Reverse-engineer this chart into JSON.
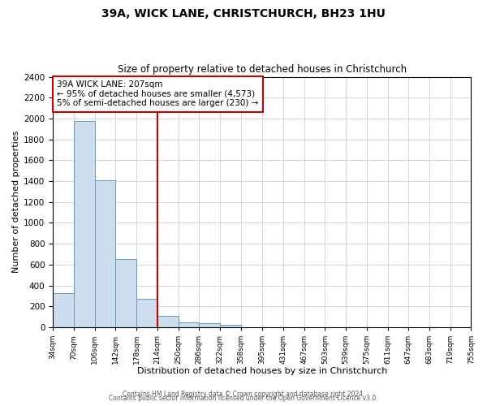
{
  "title": "39A, WICK LANE, CHRISTCHURCH, BH23 1HU",
  "subtitle": "Size of property relative to detached houses in Christchurch",
  "xlabel": "Distribution of detached houses by size in Christchurch",
  "ylabel": "Number of detached properties",
  "bar_values": [
    325,
    1975,
    1410,
    650,
    275,
    105,
    45,
    35,
    20,
    0,
    0,
    0,
    0,
    0,
    0,
    0,
    0,
    0,
    0,
    0
  ],
  "bin_edges": [
    34,
    70,
    106,
    142,
    178,
    214,
    250,
    286,
    322,
    358,
    395,
    431,
    467,
    503,
    539,
    575,
    611,
    647,
    683,
    719,
    755
  ],
  "tick_labels": [
    "34sqm",
    "70sqm",
    "106sqm",
    "142sqm",
    "178sqm",
    "214sqm",
    "250sqm",
    "286sqm",
    "322sqm",
    "358sqm",
    "395sqm",
    "431sqm",
    "467sqm",
    "503sqm",
    "539sqm",
    "575sqm",
    "611sqm",
    "647sqm",
    "683sqm",
    "719sqm",
    "755sqm"
  ],
  "bar_color": "#ccdded",
  "bar_edge_color": "#6699bb",
  "vline_x": 214,
  "vline_color": "#cc0000",
  "ylim": [
    0,
    2400
  ],
  "yticks": [
    0,
    200,
    400,
    600,
    800,
    1000,
    1200,
    1400,
    1600,
    1800,
    2000,
    2200,
    2400
  ],
  "annotation_line1": "39A WICK LANE: 207sqm",
  "annotation_line2": "← 95% of detached houses are smaller (4,573)",
  "annotation_line3": "5% of semi-detached houses are larger (230) →",
  "annotation_box_color": "#ffffff",
  "annotation_box_edge": "#cc0000",
  "footer_line1": "Contains HM Land Registry data © Crown copyright and database right 2024.",
  "footer_line2": "Contains public sector information licensed under the Open Government Licence v3.0.",
  "background_color": "#ffffff",
  "plot_bg_color": "#ffffff",
  "grid_color": "#d0d8e0"
}
